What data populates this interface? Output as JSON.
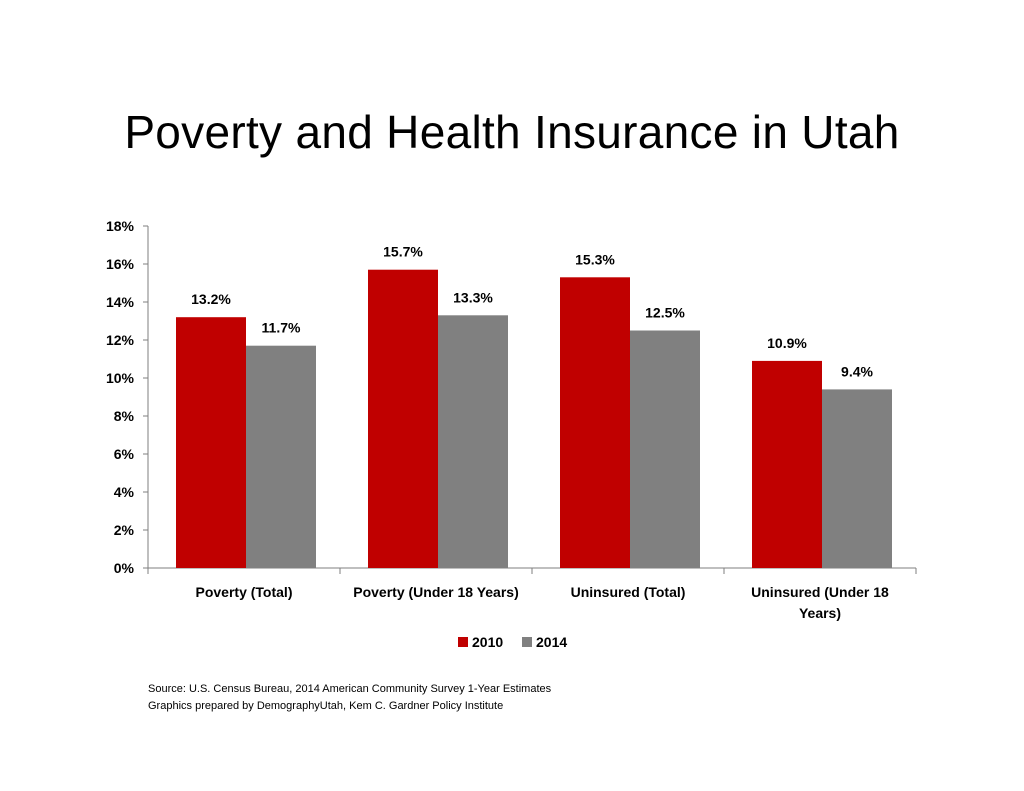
{
  "title": "Poverty and Health Insurance in Utah",
  "chart_data": {
    "type": "bar",
    "categories": [
      [
        "Poverty (Total)"
      ],
      [
        "Poverty (Under 18 Years)"
      ],
      [
        "Uninsured  (Total)"
      ],
      [
        "Uninsured  (Under 18",
        "Years)"
      ]
    ],
    "series": [
      {
        "name": "2010",
        "color": "#c00000",
        "values": [
          13.2,
          15.7,
          15.3,
          10.9
        ]
      },
      {
        "name": "2014",
        "color": "#808080",
        "values": [
          11.7,
          13.3,
          12.5,
          9.4
        ]
      }
    ],
    "data_labels": [
      [
        "13.2%",
        "15.7%",
        "15.3%",
        "10.9%"
      ],
      [
        "11.7%",
        "13.3%",
        "12.5%",
        "9.4%"
      ]
    ],
    "y_ticks": [
      0,
      2,
      4,
      6,
      8,
      10,
      12,
      14,
      16,
      18
    ],
    "y_tick_labels": [
      "0%",
      "2%",
      "4%",
      "6%",
      "8%",
      "10%",
      "12%",
      "14%",
      "16%",
      "18%"
    ],
    "ylim": [
      0,
      18
    ],
    "grid": false,
    "legend": "bottom"
  },
  "source": {
    "line1": "Source: U.S. Census Bureau, 2014 American Community Survey 1-Year Estimates",
    "line2": "Graphics prepared by DemographyUtah, Kem C. Gardner Policy Institute"
  }
}
